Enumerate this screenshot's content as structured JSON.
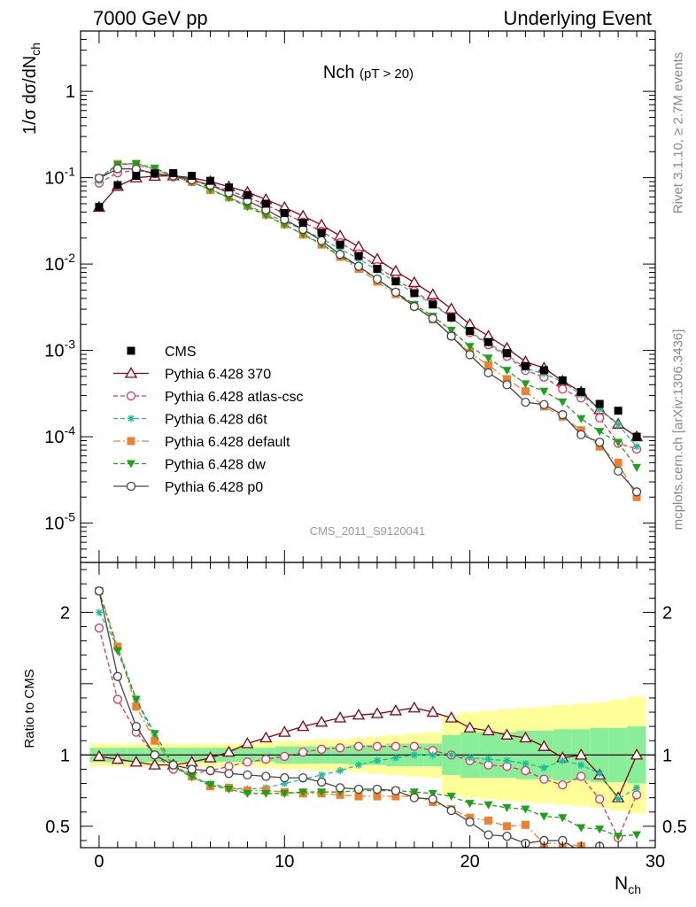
{
  "header": {
    "left": "7000 GeV pp",
    "right": "Underlying Event",
    "side_top": "Rivet 3.1.10, ≥ 2.7M events",
    "side_bottom": "mcplots.cern.ch [arXiv:1306.3436]"
  },
  "chart_data": {
    "type": "line",
    "title": "Nch",
    "title_sub": "(pT > 20)",
    "watermark": "CMS_2011_S9120041",
    "x": [
      0,
      1,
      2,
      3,
      4,
      5,
      6,
      7,
      8,
      9,
      10,
      11,
      12,
      13,
      14,
      15,
      16,
      17,
      18,
      19,
      20,
      21,
      22,
      23,
      24,
      25,
      26,
      27,
      28,
      29
    ],
    "xlim": [
      -1,
      30
    ],
    "xticks": [
      0,
      10,
      20,
      30
    ],
    "xlabel": "N",
    "xlabel_sub": "ch",
    "ylabel": "1/σ dσ/dN",
    "ylabel_sub": "ch",
    "ylim": [
      3.5e-06,
      5
    ],
    "yscale": "log",
    "yticks": [
      {
        "v": 1e-05,
        "label": "10",
        "exp": "-5"
      },
      {
        "v": 0.0001,
        "label": "10",
        "exp": "-4"
      },
      {
        "v": 0.001,
        "label": "10",
        "exp": "-3"
      },
      {
        "v": 0.01,
        "label": "10",
        "exp": "-2"
      },
      {
        "v": 0.1,
        "label": "10",
        "exp": "-1"
      },
      {
        "v": 1,
        "label": "1",
        "exp": ""
      }
    ],
    "ratio": {
      "ylabel": "Ratio to CMS",
      "ylim": [
        0.35,
        2.35
      ],
      "yticks": [
        {
          "v": 0.5,
          "label": "0.5"
        },
        {
          "v": 1,
          "label": "1"
        },
        {
          "v": 2,
          "label": "2"
        }
      ],
      "band_inner": [
        0.05,
        0.05,
        0.05,
        0.05,
        0.05,
        0.05,
        0.05,
        0.05,
        0.05,
        0.05,
        0.06,
        0.06,
        0.06,
        0.06,
        0.07,
        0.07,
        0.08,
        0.08,
        0.08,
        0.14,
        0.16,
        0.16,
        0.16,
        0.17,
        0.17,
        0.18,
        0.18,
        0.19,
        0.19,
        0.2
      ],
      "band_outer": [
        0.08,
        0.08,
        0.08,
        0.08,
        0.08,
        0.08,
        0.08,
        0.08,
        0.08,
        0.09,
        0.1,
        0.1,
        0.11,
        0.11,
        0.12,
        0.13,
        0.14,
        0.15,
        0.16,
        0.28,
        0.3,
        0.31,
        0.32,
        0.33,
        0.34,
        0.35,
        0.36,
        0.37,
        0.39,
        0.41
      ]
    },
    "data": {
      "name": "CMS",
      "values": [
        0.046,
        0.082,
        0.105,
        0.112,
        0.113,
        0.105,
        0.092,
        0.077,
        0.063,
        0.05,
        0.039,
        0.03,
        0.023,
        0.0168,
        0.0124,
        0.0088,
        0.0063,
        0.0046,
        0.0034,
        0.0024,
        0.00168,
        0.00125,
        0.00093,
        0.00066,
        0.00059,
        0.00045,
        0.00033,
        0.00024,
        0.0002,
        0.0001
      ]
    },
    "series": [
      {
        "name": "Pythia 6.428 370",
        "color": "#8b0010",
        "dash": "",
        "marker": "triangle-open",
        "ratio": [
          0.99,
          0.97,
          0.95,
          0.93,
          0.93,
          0.95,
          0.98,
          1.02,
          1.08,
          1.12,
          1.16,
          1.2,
          1.23,
          1.26,
          1.28,
          1.29,
          1.31,
          1.33,
          1.3,
          1.26,
          1.19,
          1.17,
          1.14,
          1.12,
          1.06,
          0.98,
          1.0,
          0.86,
          0.7,
          1.0
        ]
      },
      {
        "name": "Pythia 6.428 atlas-csc",
        "color": "#e8305c",
        "dash": "5,3",
        "marker": "circle-open",
        "ratio": [
          1.89,
          1.39,
          1.16,
          1.0,
          0.9,
          0.87,
          0.89,
          0.92,
          0.95,
          0.97,
          0.99,
          1.02,
          1.04,
          1.05,
          1.06,
          1.06,
          1.06,
          1.06,
          1.03,
          1.0,
          0.96,
          0.93,
          0.92,
          0.89,
          0.83,
          0.79,
          0.85,
          0.69,
          0.42,
          0.72
        ]
      },
      {
        "name": "Pythia 6.428 d6t",
        "color": "#1abc9c",
        "dash": "5,3",
        "marker": "star",
        "ratio": [
          2.0,
          1.76,
          1.39,
          1.12,
          0.92,
          0.84,
          0.8,
          0.77,
          0.76,
          0.77,
          0.8,
          0.83,
          0.86,
          0.89,
          0.93,
          0.96,
          0.98,
          1.0,
          1.0,
          1.0,
          0.98,
          0.97,
          0.96,
          0.94,
          0.91,
          0.96,
          0.93,
          0.87,
          0.69,
          0.77
        ]
      },
      {
        "name": "Pythia 6.428 default",
        "color": "#f08030",
        "dash": "8,3,2,3",
        "marker": "square",
        "ratio": [
          2.15,
          1.76,
          1.34,
          1.1,
          0.93,
          0.85,
          0.78,
          0.77,
          0.75,
          0.75,
          0.74,
          0.73,
          0.73,
          0.72,
          0.71,
          0.71,
          0.71,
          0.71,
          0.67,
          0.62,
          0.56,
          0.54,
          0.5,
          0.51,
          0.38,
          0.38,
          0.36,
          0.32,
          0.25,
          0.2
        ]
      },
      {
        "name": "Pythia 6.428 dw",
        "color": "#19a319",
        "dash": "5,3",
        "marker": "triangle-down",
        "ratio": [
          2.15,
          1.73,
          1.39,
          1.15,
          0.93,
          0.85,
          0.79,
          0.76,
          0.73,
          0.73,
          0.73,
          0.74,
          0.74,
          0.74,
          0.75,
          0.75,
          0.75,
          0.74,
          0.73,
          0.71,
          0.66,
          0.65,
          0.63,
          0.62,
          0.57,
          0.56,
          0.49,
          0.48,
          0.43,
          0.44
        ]
      },
      {
        "name": "Pythia 6.428 p0",
        "color": "#444444",
        "dash": "",
        "marker": "circle-open",
        "ratio": [
          2.15,
          1.55,
          1.2,
          1.0,
          0.93,
          0.9,
          0.89,
          0.87,
          0.86,
          0.85,
          0.84,
          0.84,
          0.81,
          0.77,
          0.76,
          0.76,
          0.75,
          0.7,
          0.69,
          0.61,
          0.53,
          0.44,
          0.43,
          0.38,
          0.4,
          0.4,
          0.32,
          0.36,
          0.2,
          0.23
        ]
      }
    ]
  }
}
